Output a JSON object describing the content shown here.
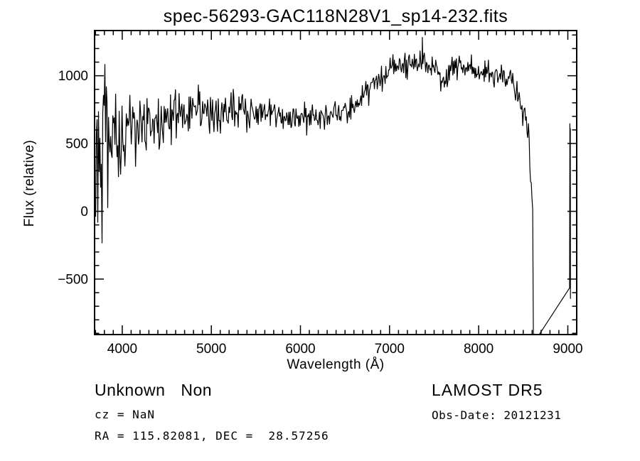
{
  "title": "spec-56293-GAC118N28V1_sp14-232.fits",
  "annotations": {
    "class_label": "Unknown",
    "subclass_label": "Non",
    "cz": "cz = NaN",
    "radec": "RA = 115.82081, DEC =  28.57256",
    "survey": "LAMOST DR5",
    "obs_date": "Obs-Date: 20121231"
  },
  "chart_data": {
    "type": "line",
    "title": "spec-56293-GAC118N28V1_sp14-232.fits",
    "xlabel": "Wavelength (Å)",
    "ylabel": "Flux (relative)",
    "xlim": [
      3690,
      9100
    ],
    "ylim": [
      -909,
      1333
    ],
    "x_ticks": [
      4000,
      5000,
      6000,
      7000,
      8000,
      9000
    ],
    "y_ticks": [
      -500,
      0,
      500,
      1000
    ],
    "x_minor_step": 100,
    "y_minor_step": 100,
    "grid": false,
    "legend": "none",
    "line_color": "#000000",
    "frame_color": "#000000",
    "background": "#ffffff",
    "sample": {
      "start": 3702,
      "end": 8610,
      "step": 8,
      "seed": 20121231
    },
    "envelope": [
      [
        3700,
        240
      ],
      [
        3720,
        300
      ],
      [
        3760,
        360
      ],
      [
        3800,
        430
      ],
      [
        3850,
        480
      ],
      [
        3900,
        515
      ],
      [
        3950,
        545
      ],
      [
        4000,
        565
      ],
      [
        4100,
        605
      ],
      [
        4200,
        635
      ],
      [
        4300,
        655
      ],
      [
        4400,
        675
      ],
      [
        4500,
        692
      ],
      [
        4600,
        705
      ],
      [
        4700,
        716
      ],
      [
        4800,
        724
      ],
      [
        4900,
        730
      ],
      [
        5000,
        736
      ],
      [
        5100,
        741
      ],
      [
        5200,
        744
      ],
      [
        5300,
        741
      ],
      [
        5400,
        736
      ],
      [
        5500,
        730
      ],
      [
        5600,
        723
      ],
      [
        5700,
        713
      ],
      [
        5800,
        700
      ],
      [
        5900,
        688
      ],
      [
        6000,
        698
      ],
      [
        6100,
        708
      ],
      [
        6200,
        714
      ],
      [
        6300,
        719
      ],
      [
        6400,
        726
      ],
      [
        6500,
        742
      ],
      [
        6600,
        782
      ],
      [
        6700,
        845
      ],
      [
        6800,
        915
      ],
      [
        6900,
        985
      ],
      [
        7000,
        1035
      ],
      [
        7100,
        1063
      ],
      [
        7200,
        1082
      ],
      [
        7300,
        1096
      ],
      [
        7400,
        1090
      ],
      [
        7500,
        1074
      ],
      [
        7550,
        1038
      ],
      [
        7600,
        958
      ],
      [
        7650,
        1008
      ],
      [
        7700,
        1048
      ],
      [
        7800,
        1056
      ],
      [
        7900,
        1050
      ],
      [
        8000,
        1046
      ],
      [
        8100,
        1022
      ],
      [
        8200,
        1032
      ],
      [
        8300,
        992
      ],
      [
        8350,
        952
      ],
      [
        8400,
        918
      ],
      [
        8450,
        858
      ],
      [
        8500,
        778
      ],
      [
        8530,
        698
      ],
      [
        8560,
        540
      ],
      [
        8580,
        300
      ],
      [
        8596,
        120
      ],
      [
        8610,
        40
      ]
    ],
    "noise_sigma": [
      [
        3700,
        300
      ],
      [
        3780,
        275
      ],
      [
        3850,
        230
      ],
      [
        3950,
        175
      ],
      [
        4050,
        140
      ],
      [
        4200,
        115
      ],
      [
        4400,
        95
      ],
      [
        4700,
        80
      ],
      [
        5000,
        70
      ],
      [
        5500,
        64
      ],
      [
        6000,
        58
      ],
      [
        6500,
        52
      ],
      [
        7000,
        48
      ],
      [
        7500,
        44
      ],
      [
        8000,
        46
      ],
      [
        8250,
        56
      ],
      [
        8450,
        70
      ],
      [
        8560,
        55
      ],
      [
        8610,
        30
      ]
    ],
    "spikes": [
      [
        7368,
        1285
      ]
    ],
    "tail": [
      [
        8614,
        -975
      ],
      [
        9020,
        -565
      ],
      [
        9023,
        648
      ],
      [
        9026,
        -260
      ],
      [
        9028,
        612
      ],
      [
        9030,
        -645
      ]
    ]
  }
}
